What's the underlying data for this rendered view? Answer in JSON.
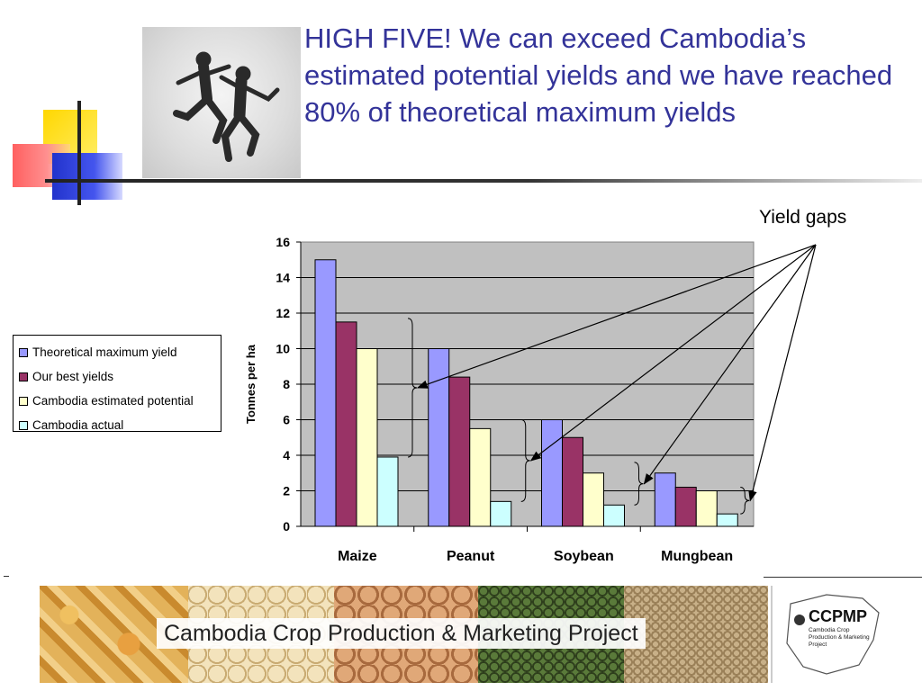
{
  "slide": {
    "title": "HIGH FIVE! We can exceed Cambodia’s estimated potential yields and we have reached 80% of theoretical maximum yields",
    "callout": "Yield gaps",
    "accent_color": "#333399"
  },
  "banner": {
    "caption": "Cambodia Crop Production & Marketing Project",
    "logo_title": "CCPMP",
    "logo_subtitle": "Cambodia Crop Production & Marketing Project"
  },
  "chart_data": {
    "type": "bar",
    "title": "",
    "xlabel": "",
    "ylabel": "Tonnes per ha",
    "ylim": [
      0,
      16
    ],
    "yticks": [
      0,
      2,
      4,
      6,
      8,
      10,
      12,
      14,
      16
    ],
    "grid": true,
    "legend_position": "left",
    "categories": [
      "Maize",
      "Peanut",
      "Soybean",
      "Mungbean"
    ],
    "series": [
      {
        "name": "Theoretical maximum yield",
        "color": "#9999ff",
        "values": [
          15,
          10,
          6,
          3
        ]
      },
      {
        "name": "Our best yields",
        "color": "#993366",
        "values": [
          11.5,
          8.4,
          5,
          2.2
        ]
      },
      {
        "name": "Cambodia estimated potential",
        "color": "#ffffcc",
        "values": [
          10,
          5.5,
          3,
          2
        ]
      },
      {
        "name": "Cambodia actual",
        "color": "#ccffff",
        "values": [
          3.9,
          1.4,
          1.2,
          0.7
        ]
      }
    ]
  }
}
